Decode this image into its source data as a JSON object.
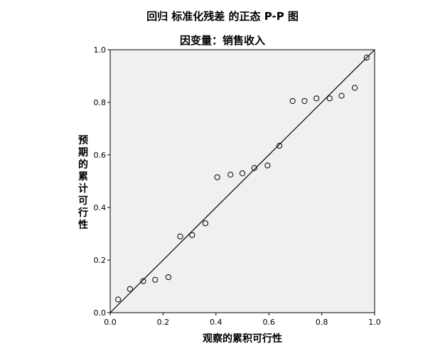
{
  "chart_data": {
    "type": "scatter",
    "title": "回归 标准化残差 的正态 P-P 图",
    "subtitle": "因变量：销售收入",
    "xlabel": "观察的累积可行性",
    "ylabel": "预期的累计可行性",
    "xlim": [
      0,
      1
    ],
    "ylim": [
      0,
      1
    ],
    "xticks": [
      "0.0",
      "0.2",
      "0.4",
      "0.6",
      "0.8",
      "1.0"
    ],
    "yticks": [
      "0.0",
      "0.2",
      "0.4",
      "0.6",
      "0.8",
      "1.0"
    ],
    "reference_line": [
      [
        0,
        0
      ],
      [
        1,
        1
      ]
    ],
    "grid": false,
    "plot_background": "#f0f0f0",
    "point_style": "hollow-circle",
    "points": [
      {
        "x": 0.03,
        "y": 0.05
      },
      {
        "x": 0.075,
        "y": 0.09
      },
      {
        "x": 0.125,
        "y": 0.12
      },
      {
        "x": 0.17,
        "y": 0.125
      },
      {
        "x": 0.22,
        "y": 0.135
      },
      {
        "x": 0.265,
        "y": 0.29
      },
      {
        "x": 0.31,
        "y": 0.295
      },
      {
        "x": 0.36,
        "y": 0.34
      },
      {
        "x": 0.405,
        "y": 0.515
      },
      {
        "x": 0.455,
        "y": 0.525
      },
      {
        "x": 0.5,
        "y": 0.53
      },
      {
        "x": 0.545,
        "y": 0.55
      },
      {
        "x": 0.595,
        "y": 0.56
      },
      {
        "x": 0.64,
        "y": 0.635
      },
      {
        "x": 0.69,
        "y": 0.805
      },
      {
        "x": 0.735,
        "y": 0.805
      },
      {
        "x": 0.78,
        "y": 0.815
      },
      {
        "x": 0.83,
        "y": 0.815
      },
      {
        "x": 0.875,
        "y": 0.825
      },
      {
        "x": 0.925,
        "y": 0.855
      },
      {
        "x": 0.97,
        "y": 0.97
      }
    ]
  }
}
